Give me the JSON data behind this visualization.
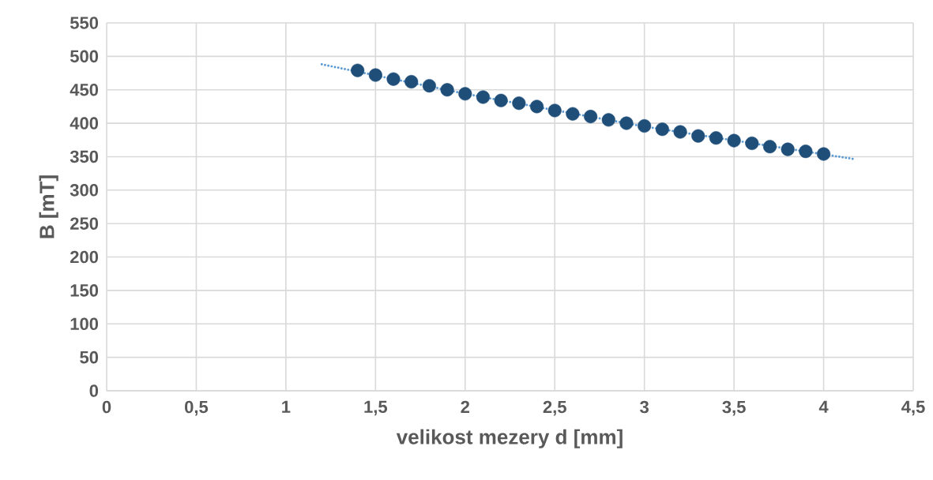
{
  "chart_data": {
    "type": "scatter",
    "xlabel": "velikost mezery d [mm]",
    "ylabel": "B [mT]",
    "xlim": [
      0,
      4.5
    ],
    "xticks": [
      0,
      {
        "value": 0.5,
        "label": "0,5"
      },
      1,
      {
        "value": 1.5,
        "label": "1,5"
      },
      2,
      {
        "value": 2.5,
        "label": "2,5"
      },
      3,
      {
        "value": 3.5,
        "label": "3,5"
      },
      4,
      {
        "value": 4.5,
        "label": "4,5"
      }
    ],
    "ylim": [
      0,
      550
    ],
    "yticks": [
      0,
      50,
      100,
      150,
      200,
      250,
      300,
      350,
      400,
      450,
      500,
      550
    ],
    "grid": true,
    "series": [
      {
        "marker": "circle",
        "color": "#1f4e79",
        "x": [
          1.4,
          1.5,
          1.6,
          1.7,
          1.8,
          1.9,
          2.0,
          2.1,
          2.2,
          2.3,
          2.4,
          2.5,
          2.6,
          2.7,
          2.8,
          2.9,
          3.0,
          3.1,
          3.2,
          3.3,
          3.4,
          3.5,
          3.6,
          3.7,
          3.8,
          3.9,
          4.0
        ],
        "values": [
          479,
          472,
          466,
          462,
          456,
          450,
          444,
          439,
          434,
          430,
          425,
          419,
          414,
          410,
          405,
          400,
          396,
          391,
          387,
          381,
          378,
          374,
          370,
          365,
          361,
          358,
          354
        ]
      },
      {
        "type": "line",
        "marker": "none",
        "color": "#5b9bd5",
        "line_style": "dotted",
        "x": [
          1.2,
          2.0,
          3.0,
          4.18
        ],
        "values": [
          488,
          444,
          395,
          346
        ]
      }
    ]
  }
}
